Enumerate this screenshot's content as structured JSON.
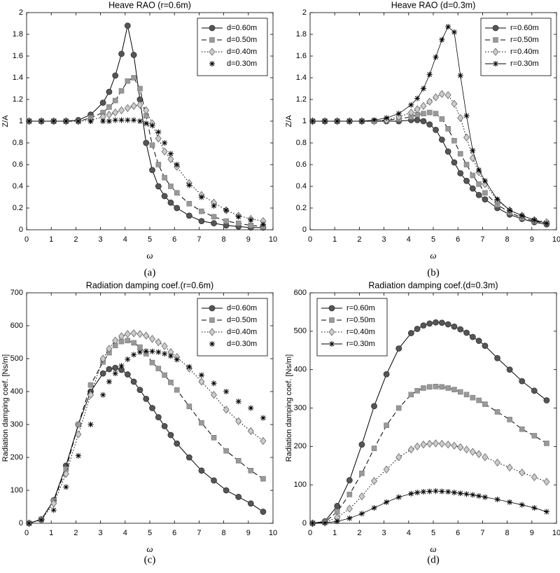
{
  "chart_data": [
    {
      "type": "line",
      "title": "Heave RAO (r=0.6m)",
      "caption": "(a)",
      "xlabel": "ω",
      "ylabel": "Z/A",
      "xlim": [
        0,
        10
      ],
      "xticks": [
        0,
        1,
        2,
        3,
        4,
        5,
        6,
        7,
        8,
        9,
        10
      ],
      "ylim": [
        0,
        2
      ],
      "yticks": [
        0,
        0.2,
        0.4,
        0.6,
        0.8,
        1,
        1.2,
        1.4,
        1.6,
        1.8,
        2
      ],
      "legend": "upper right",
      "x": [
        0.1,
        0.6,
        1.1,
        1.6,
        2.1,
        2.6,
        3.1,
        3.35,
        3.6,
        3.85,
        4.1,
        4.35,
        4.6,
        4.85,
        5.1,
        5.35,
        5.6,
        5.85,
        6.1,
        6.6,
        7.1,
        7.6,
        8.1,
        8.6,
        9.1,
        9.6
      ],
      "series": [
        {
          "name": "d=0.60m",
          "color": "#555555",
          "marker": "circle",
          "linestyle": "solid",
          "values": [
            1,
            1,
            1,
            1,
            1.01,
            1.06,
            1.17,
            1.27,
            1.42,
            1.62,
            1.88,
            1.61,
            1.2,
            0.8,
            0.55,
            0.4,
            0.31,
            0.25,
            0.2,
            0.13,
            0.08,
            0.06,
            0.04,
            0.03,
            0.02,
            0.02
          ]
        },
        {
          "name": "d=0.50m",
          "color": "#999999",
          "marker": "square",
          "linestyle": "dashed",
          "values": [
            1,
            1,
            1,
            1,
            1,
            1.03,
            1.08,
            1.13,
            1.19,
            1.28,
            1.37,
            1.4,
            1.3,
            1.05,
            0.78,
            0.6,
            0.48,
            0.4,
            0.34,
            0.24,
            0.17,
            0.12,
            0.08,
            0.06,
            0.04,
            0.03
          ]
        },
        {
          "name": "d=0.40m",
          "color": "#cccccc",
          "marker": "diamond",
          "linestyle": "dotted",
          "values": [
            1,
            1,
            1,
            1,
            1,
            1.01,
            1.04,
            1.06,
            1.08,
            1.1,
            1.12,
            1.14,
            1.15,
            1.1,
            0.98,
            0.84,
            0.72,
            0.65,
            0.58,
            0.43,
            0.32,
            0.25,
            0.18,
            0.13,
            0.1,
            0.08
          ]
        },
        {
          "name": "d=0.30m",
          "color": "#000000",
          "marker": "asterisk",
          "linestyle": "none",
          "values": [
            1,
            1,
            1,
            1,
            1,
            1,
            1,
            1,
            1.01,
            1.01,
            1.01,
            1.01,
            1,
            0.98,
            0.96,
            0.9,
            0.8,
            0.7,
            0.6,
            0.41,
            0.3,
            0.22,
            0.18,
            0.12,
            0.09,
            0.05
          ]
        }
      ]
    },
    {
      "type": "line",
      "title": "Heave RAO (d=0.3m)",
      "caption": "(b)",
      "xlabel": "ω",
      "ylabel": "Z/A",
      "xlim": [
        0,
        10
      ],
      "xticks": [
        0,
        1,
        2,
        3,
        4,
        5,
        6,
        7,
        8,
        9,
        10
      ],
      "ylim": [
        0,
        2
      ],
      "yticks": [
        0,
        0.2,
        0.4,
        0.6,
        0.8,
        1,
        1.2,
        1.4,
        1.6,
        1.8,
        2
      ],
      "legend": "upper right",
      "x": [
        0.1,
        0.6,
        1.1,
        1.6,
        2.1,
        2.6,
        3.1,
        3.6,
        4.1,
        4.35,
        4.6,
        4.85,
        5.1,
        5.35,
        5.6,
        5.85,
        6.1,
        6.35,
        6.6,
        6.85,
        7.1,
        7.6,
        8.1,
        8.6,
        9.1,
        9.6
      ],
      "series": [
        {
          "name": "r=0.60m",
          "color": "#555555",
          "marker": "circle",
          "linestyle": "solid",
          "values": [
            1,
            1,
            1,
            1,
            1,
            1,
            1,
            1,
            1.01,
            1.01,
            1,
            0.97,
            0.92,
            0.83,
            0.72,
            0.62,
            0.52,
            0.45,
            0.38,
            0.32,
            0.28,
            0.2,
            0.14,
            0.1,
            0.07,
            0.05
          ]
        },
        {
          "name": "r=0.50m",
          "color": "#999999",
          "marker": "square",
          "linestyle": "dashed",
          "values": [
            1,
            1,
            1,
            1,
            1,
            1,
            1.01,
            1.02,
            1.04,
            1.06,
            1.07,
            1.08,
            1.07,
            1.02,
            0.93,
            0.82,
            0.7,
            0.6,
            0.5,
            0.42,
            0.34,
            0.23,
            0.16,
            0.11,
            0.08,
            0.06
          ]
        },
        {
          "name": "r=0.40m",
          "color": "#cccccc",
          "marker": "diamond",
          "linestyle": "dotted",
          "values": [
            1,
            1,
            1,
            1,
            1,
            1,
            1.01,
            1.04,
            1.08,
            1.11,
            1.14,
            1.18,
            1.22,
            1.25,
            1.24,
            1.16,
            1.03,
            0.85,
            0.66,
            0.53,
            0.42,
            0.27,
            0.18,
            0.13,
            0.09,
            0.07
          ]
        },
        {
          "name": "r=0.30m",
          "color": "#000000",
          "marker": "asterisk",
          "linestyle": "solid",
          "values": [
            1,
            1,
            1,
            1,
            1,
            1.01,
            1.03,
            1.07,
            1.15,
            1.21,
            1.3,
            1.43,
            1.59,
            1.75,
            1.87,
            1.82,
            1.42,
            1.05,
            0.73,
            0.55,
            0.45,
            0.28,
            0.18,
            0.13,
            0.09,
            0.06
          ]
        }
      ]
    },
    {
      "type": "line",
      "title": "Radiation damping coef.(r=0.6m)",
      "caption": "(c)",
      "xlabel": "ω",
      "ylabel": "Radiation damping coef. [Ns/m]",
      "xlim": [
        0,
        10
      ],
      "xticks": [
        0,
        1,
        2,
        3,
        4,
        5,
        6,
        7,
        8,
        9,
        10
      ],
      "ylim": [
        0,
        700
      ],
      "yticks": [
        0,
        100,
        200,
        300,
        400,
        500,
        600,
        700
      ],
      "legend": "upper right",
      "x": [
        0.1,
        0.6,
        1.1,
        1.6,
        2.1,
        2.6,
        3.1,
        3.35,
        3.6,
        3.85,
        4.1,
        4.35,
        4.6,
        4.85,
        5.1,
        5.35,
        5.6,
        5.85,
        6.1,
        6.6,
        7.1,
        7.6,
        8.1,
        8.6,
        9.1,
        9.6
      ],
      "series": [
        {
          "name": "d=0.60m",
          "color": "#555555",
          "marker": "circle",
          "linestyle": "solid",
          "values": [
            0,
            12,
            70,
            175,
            300,
            400,
            455,
            468,
            472,
            466,
            452,
            430,
            405,
            378,
            350,
            322,
            295,
            268,
            242,
            200,
            160,
            130,
            100,
            80,
            60,
            35
          ]
        },
        {
          "name": "d=0.50m",
          "color": "#999999",
          "marker": "square",
          "linestyle": "dashed",
          "values": [
            0,
            12,
            68,
            165,
            300,
            420,
            490,
            518,
            540,
            552,
            555,
            548,
            535,
            515,
            488,
            470,
            450,
            428,
            405,
            355,
            305,
            260,
            220,
            190,
            160,
            135
          ]
        },
        {
          "name": "d=0.40m",
          "color": "#cccccc",
          "marker": "diamond",
          "linestyle": "dotted",
          "values": [
            0,
            10,
            60,
            150,
            270,
            390,
            500,
            530,
            555,
            568,
            575,
            577,
            575,
            570,
            560,
            550,
            538,
            520,
            505,
            470,
            430,
            390,
            345,
            310,
            280,
            250
          ]
        },
        {
          "name": "d=0.30m",
          "color": "#000000",
          "marker": "asterisk",
          "linestyle": "none",
          "values": [
            0,
            10,
            40,
            110,
            205,
            300,
            390,
            430,
            455,
            478,
            498,
            512,
            520,
            523,
            522,
            520,
            515,
            508,
            497,
            475,
            450,
            425,
            400,
            370,
            350,
            320
          ]
        }
      ]
    },
    {
      "type": "line",
      "title": "Radiation damping coef.(d=0.3m)",
      "caption": "(d)",
      "xlabel": "ω",
      "ylabel": "Radiation damping coef. [Ns/m]",
      "xlim": [
        0,
        10
      ],
      "xticks": [
        0,
        1,
        2,
        3,
        4,
        5,
        6,
        7,
        8,
        9,
        10
      ],
      "ylim": [
        0,
        600
      ],
      "yticks": [
        0,
        100,
        200,
        300,
        400,
        500,
        600
      ],
      "legend": "upper left",
      "x": [
        0.1,
        0.6,
        1.1,
        1.6,
        2.1,
        2.6,
        3.1,
        3.6,
        4.1,
        4.35,
        4.6,
        4.85,
        5.1,
        5.35,
        5.6,
        5.85,
        6.1,
        6.35,
        6.6,
        6.85,
        7.1,
        7.6,
        8.1,
        8.6,
        9.1,
        9.6
      ],
      "series": [
        {
          "name": "r=0.60m",
          "color": "#555555",
          "marker": "circle",
          "linestyle": "solid",
          "values": [
            0,
            5,
            45,
            112,
            205,
            305,
            388,
            455,
            495,
            506,
            515,
            520,
            523,
            522,
            518,
            512,
            505,
            496,
            485,
            475,
            462,
            430,
            400,
            370,
            345,
            320
          ]
        },
        {
          "name": "r=0.50m",
          "color": "#999999",
          "marker": "square",
          "linestyle": "dashed",
          "values": [
            0,
            3,
            30,
            75,
            130,
            195,
            255,
            300,
            335,
            345,
            352,
            355,
            356,
            355,
            352,
            348,
            342,
            335,
            327,
            320,
            310,
            290,
            270,
            245,
            228,
            208
          ]
        },
        {
          "name": "r=0.40m",
          "color": "#cccccc",
          "marker": "diamond",
          "linestyle": "dotted",
          "values": [
            0,
            2,
            15,
            38,
            70,
            110,
            140,
            172,
            192,
            200,
            205,
            207,
            208,
            207,
            205,
            202,
            198,
            192,
            186,
            180,
            172,
            158,
            145,
            132,
            120,
            108
          ]
        },
        {
          "name": "r=0.30m",
          "color": "#000000",
          "marker": "asterisk",
          "linestyle": "solid",
          "values": [
            0,
            1,
            5,
            13,
            25,
            40,
            55,
            68,
            77,
            80,
            82,
            83,
            84,
            83,
            82,
            80,
            78,
            76,
            74,
            71,
            68,
            62,
            55,
            48,
            40,
            30
          ]
        }
      ]
    }
  ]
}
